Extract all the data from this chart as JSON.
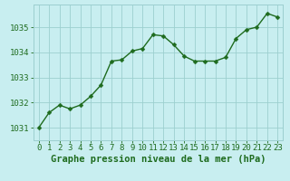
{
  "x": [
    0,
    1,
    2,
    3,
    4,
    5,
    6,
    7,
    8,
    9,
    10,
    11,
    12,
    13,
    14,
    15,
    16,
    17,
    18,
    19,
    20,
    21,
    22,
    23
  ],
  "y": [
    1031.0,
    1031.6,
    1031.9,
    1031.75,
    1031.9,
    1032.25,
    1032.7,
    1033.65,
    1033.7,
    1034.05,
    1034.15,
    1034.7,
    1034.65,
    1034.3,
    1033.85,
    1033.65,
    1033.65,
    1033.65,
    1033.8,
    1034.55,
    1034.9,
    1035.0,
    1035.55,
    1035.4
  ],
  "line_color": "#1e6b1e",
  "marker_color": "#1e6b1e",
  "bg_color": "#c8eef0",
  "grid_color": "#9ccfcf",
  "ylabel_ticks": [
    1031,
    1032,
    1033,
    1034,
    1035
  ],
  "xlabel": "Graphe pression niveau de la mer (hPa)",
  "xlim": [
    -0.5,
    23.5
  ],
  "ylim": [
    1030.5,
    1035.9
  ],
  "xlabel_color": "#1e6b1e",
  "tick_color": "#1e6b1e",
  "xlabel_fontsize": 7.5,
  "tick_fontsize": 6.5,
  "marker_size": 2.5,
  "line_width": 1.0
}
